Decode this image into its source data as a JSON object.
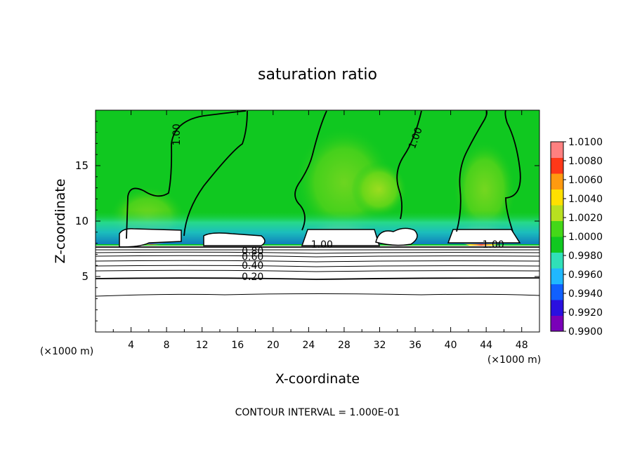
{
  "chart_data": {
    "type": "heatmap",
    "title": "saturation ratio",
    "xlabel": "X-coordinate",
    "ylabel": "Z-coordinate",
    "x_unit_left": "(×1000 m)",
    "x_unit_right": "(×1000 m)",
    "footer": "CONTOUR INTERVAL = 1.000E-01",
    "xlim": [
      0,
      50
    ],
    "ylim": [
      0,
      20
    ],
    "x_ticks": [
      4,
      8,
      12,
      16,
      20,
      24,
      28,
      32,
      36,
      40,
      44,
      48
    ],
    "y_ticks": [
      5,
      10,
      15
    ],
    "colorbar": {
      "ticks": [
        "0.9900",
        "0.9920",
        "0.9940",
        "0.9960",
        "0.9980",
        "1.0000",
        "1.0020",
        "1.0040",
        "1.0060",
        "1.0080",
        "1.0100"
      ],
      "colors": [
        "#7a00b8",
        "#2a10e0",
        "#1060ff",
        "#20b8ff",
        "#30e0b8",
        "#10c820",
        "#44d818",
        "#b8e020",
        "#ffe000",
        "#ff9a10",
        "#ff3818",
        "#ff8080"
      ]
    },
    "contour_labels": [
      {
        "text": "1.00",
        "x": 9.1,
        "z": 17.8,
        "rotate": -90
      },
      {
        "text": "1.00",
        "x": 36.0,
        "z": 17.5,
        "rotate": -70
      },
      {
        "text": "1.00",
        "x": 25.5,
        "z": 7.9,
        "rotate": 0
      },
      {
        "text": "1.00",
        "x": 44.8,
        "z": 7.9,
        "rotate": 0
      },
      {
        "text": "0.80",
        "x": 17.7,
        "z": 7.3,
        "rotate": 0
      },
      {
        "text": "0.60",
        "x": 17.7,
        "z": 6.8,
        "rotate": 0
      },
      {
        "text": "0.40",
        "x": 17.7,
        "z": 6.0,
        "rotate": 0
      },
      {
        "text": "0.20",
        "x": 17.7,
        "z": 5.0,
        "rotate": 0
      }
    ],
    "grid": false,
    "legend": "right"
  }
}
